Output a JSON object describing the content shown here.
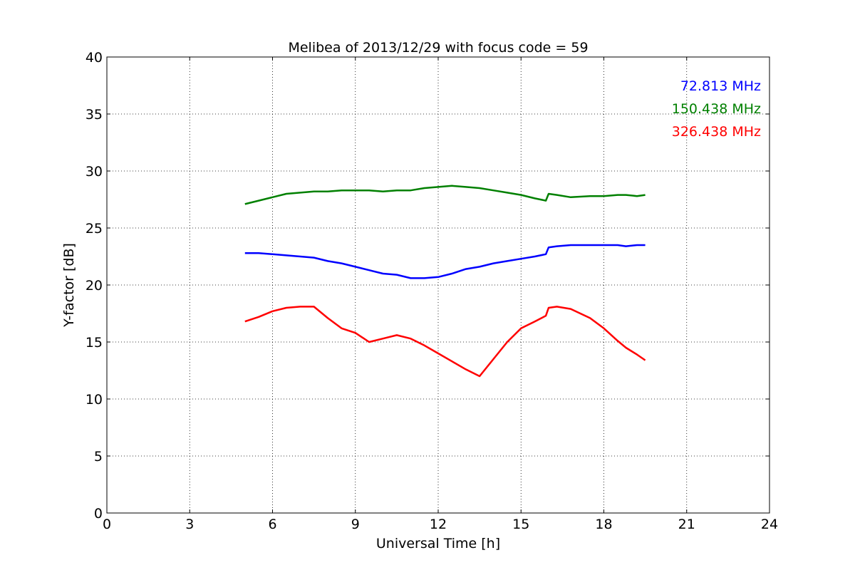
{
  "chart_data": {
    "type": "line",
    "title": "Melibea of 2013/12/29 with focus code = 59",
    "xlabel": "Universal Time [h]",
    "ylabel": "Y-factor [dB]",
    "xlim": [
      0,
      24
    ],
    "ylim": [
      0,
      40
    ],
    "xticks": [
      0,
      3,
      6,
      9,
      12,
      15,
      18,
      21,
      24
    ],
    "yticks": [
      0,
      5,
      10,
      15,
      20,
      25,
      30,
      35,
      40
    ],
    "grid": true,
    "legend_position": "top-right",
    "series": [
      {
        "name": "72.813 MHz",
        "color": "#0000ff",
        "x": [
          5.0,
          5.5,
          6.0,
          6.5,
          7.0,
          7.5,
          8.0,
          8.5,
          9.0,
          9.5,
          10.0,
          10.5,
          11.0,
          11.5,
          12.0,
          12.5,
          13.0,
          13.5,
          14.0,
          14.5,
          15.0,
          15.5,
          15.9,
          16.0,
          16.3,
          16.8,
          17.5,
          18.0,
          18.5,
          18.8,
          19.2,
          19.5
        ],
        "y": [
          22.8,
          22.8,
          22.7,
          22.6,
          22.5,
          22.4,
          22.1,
          21.9,
          21.6,
          21.3,
          21.0,
          20.9,
          20.6,
          20.6,
          20.7,
          21.0,
          21.4,
          21.6,
          21.9,
          22.1,
          22.3,
          22.5,
          22.7,
          23.3,
          23.4,
          23.5,
          23.5,
          23.5,
          23.5,
          23.4,
          23.5,
          23.5
        ]
      },
      {
        "name": "150.438 MHz",
        "color": "#008000",
        "x": [
          5.0,
          5.5,
          6.0,
          6.5,
          7.0,
          7.5,
          8.0,
          8.5,
          9.0,
          9.5,
          10.0,
          10.5,
          11.0,
          11.5,
          12.0,
          12.5,
          13.0,
          13.5,
          14.0,
          14.5,
          15.0,
          15.5,
          15.9,
          16.0,
          16.3,
          16.8,
          17.5,
          18.0,
          18.5,
          18.8,
          19.2,
          19.5
        ],
        "y": [
          27.1,
          27.4,
          27.7,
          28.0,
          28.1,
          28.2,
          28.2,
          28.3,
          28.3,
          28.3,
          28.2,
          28.3,
          28.3,
          28.5,
          28.6,
          28.7,
          28.6,
          28.5,
          28.3,
          28.1,
          27.9,
          27.6,
          27.4,
          28.0,
          27.9,
          27.7,
          27.8,
          27.8,
          27.9,
          27.9,
          27.8,
          27.9
        ]
      },
      {
        "name": "326.438 MHz",
        "color": "#ff0000",
        "x": [
          5.0,
          5.5,
          6.0,
          6.5,
          7.0,
          7.5,
          8.0,
          8.5,
          9.0,
          9.5,
          10.0,
          10.5,
          11.0,
          11.5,
          12.0,
          12.5,
          13.0,
          13.5,
          14.0,
          14.5,
          15.0,
          15.5,
          15.9,
          16.0,
          16.3,
          16.8,
          17.5,
          18.0,
          18.5,
          18.8,
          19.2,
          19.5
        ],
        "y": [
          16.8,
          17.2,
          17.7,
          18.0,
          18.1,
          18.1,
          17.1,
          16.2,
          15.8,
          15.0,
          15.3,
          15.6,
          15.3,
          14.7,
          14.0,
          13.3,
          12.6,
          12.0,
          13.5,
          15.0,
          16.2,
          16.8,
          17.3,
          18.0,
          18.1,
          17.9,
          17.1,
          16.2,
          15.1,
          14.5,
          13.9,
          13.4
        ]
      }
    ]
  }
}
